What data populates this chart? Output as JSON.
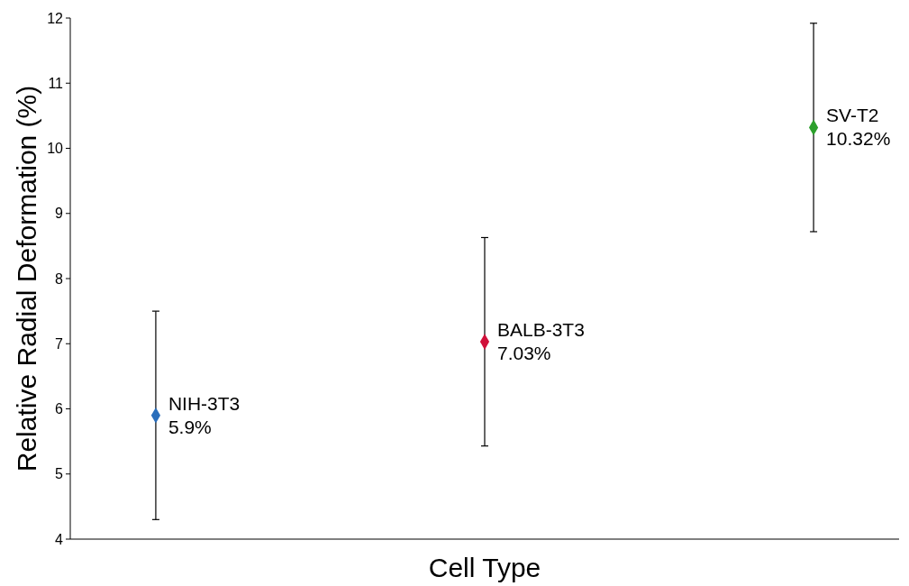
{
  "chart_data": {
    "type": "scatter",
    "xlabel": "Cell Type",
    "ylabel": "Relative Radial Deformation (%)",
    "categories": [
      null,
      null,
      null
    ],
    "ylim": [
      4,
      12
    ],
    "yticks": [
      4,
      5,
      6,
      7,
      8,
      9,
      10,
      11,
      12
    ],
    "marker": "diamond",
    "grid": false,
    "series": [
      {
        "name": "NIH-3T3",
        "color": "#2a6ebb",
        "values": [
          5.9,
          null,
          null
        ],
        "errors": [
          1.6,
          null,
          null
        ],
        "value_labels": [
          "5.9%",
          null,
          null
        ]
      },
      {
        "name": "BALB-3T3",
        "color": "#d0103a",
        "values": [
          null,
          7.03,
          null
        ],
        "errors": [
          null,
          1.6,
          null
        ],
        "value_labels": [
          null,
          "7.03%",
          null
        ]
      },
      {
        "name": "SV-T2",
        "color": "#2ca02c",
        "values": [
          null,
          null,
          10.32
        ],
        "errors": [
          null,
          null,
          1.6
        ],
        "value_labels": [
          null,
          null,
          "10.32%"
        ]
      }
    ]
  }
}
